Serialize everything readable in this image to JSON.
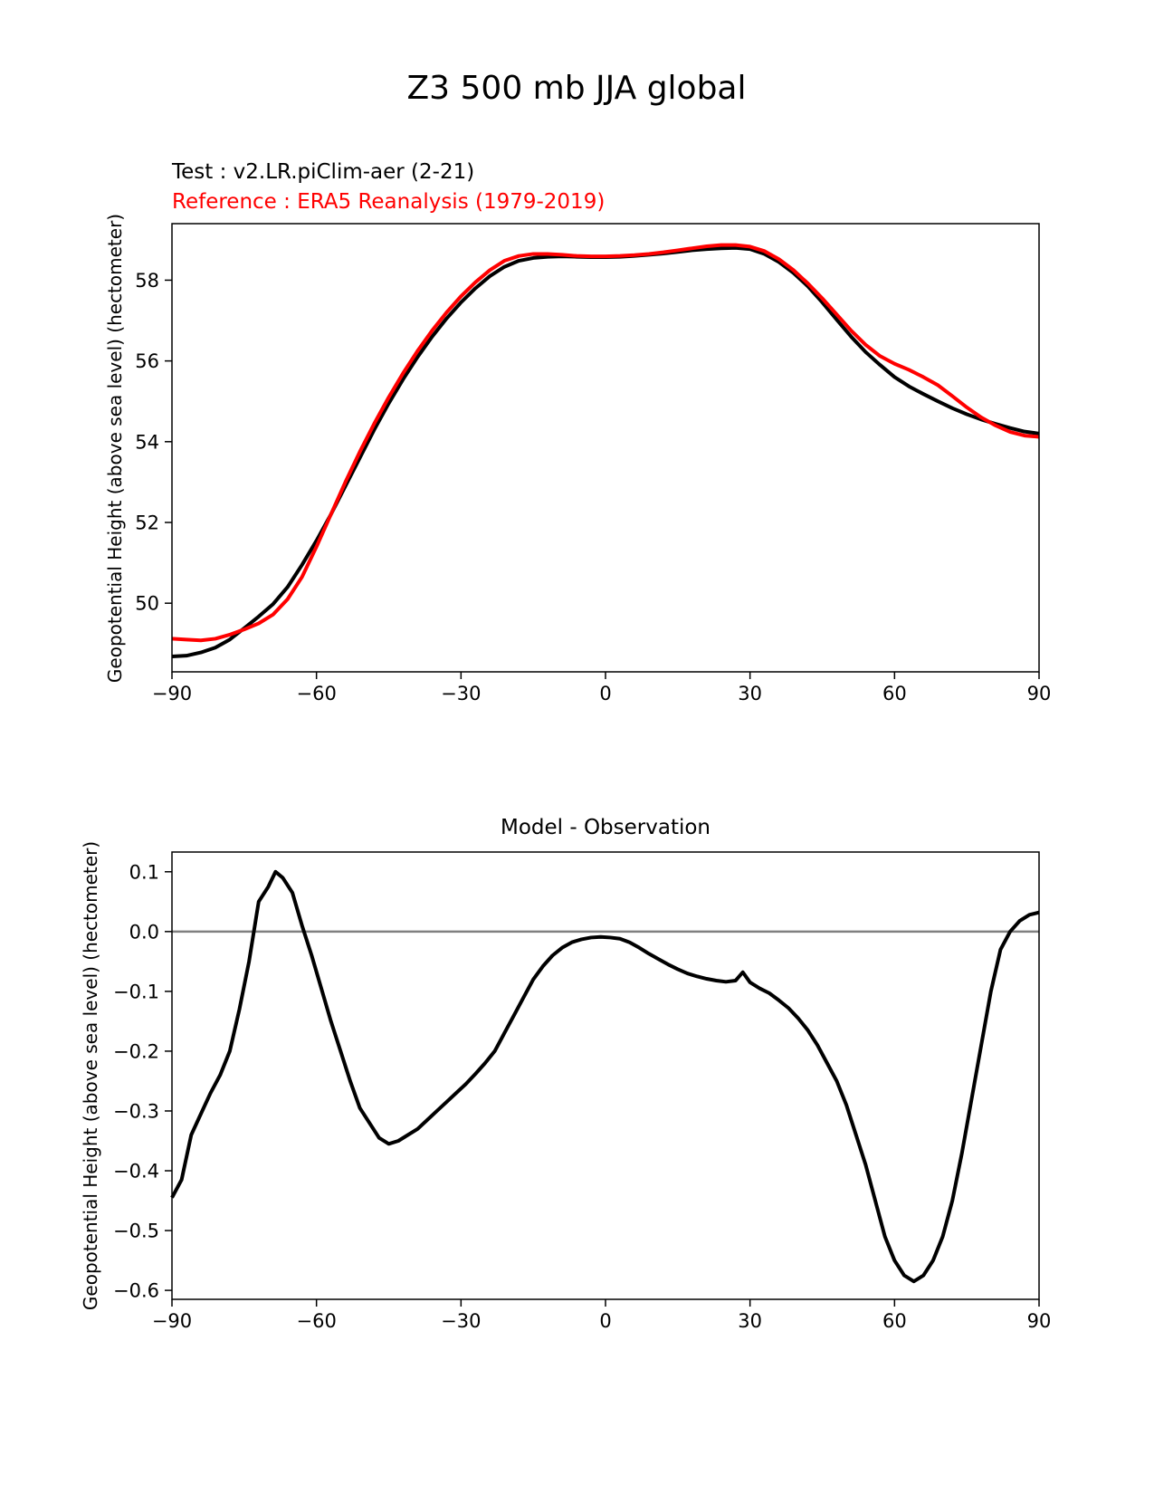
{
  "figure": {
    "title": "Z3 500 mb JJA global"
  },
  "chart_data": [
    {
      "type": "line",
      "test_label": "Test : v2.LR.piClim-aer (2-21)",
      "reference_label": "Reference : ERA5 Reanalysis (1979-2019)",
      "ylabel": "Geopotential Height (above sea level) (hectometer)",
      "xlabel": "",
      "xlim": [
        -90,
        90
      ],
      "ylim": [
        48.3,
        59.4
      ],
      "xticks": [
        -90,
        -60,
        -30,
        0,
        30,
        60,
        90
      ],
      "xtick_labels": [
        "−90",
        "−60",
        "−30",
        "0",
        "30",
        "60",
        "90"
      ],
      "yticks": [
        50,
        52,
        54,
        56,
        58
      ],
      "ytick_labels": [
        "50",
        "52",
        "54",
        "56",
        "58"
      ],
      "grid": false,
      "series": [
        {
          "name": "Test : v2.LR.piClim-aer (2-21)",
          "color": "#000000",
          "x": [
            -90,
            -87,
            -84,
            -81,
            -78,
            -75,
            -72,
            -69,
            -66,
            -63,
            -60,
            -57,
            -54,
            -51,
            -48,
            -45,
            -42,
            -39,
            -36,
            -33,
            -30,
            -27,
            -24,
            -21,
            -18,
            -15,
            -12,
            -9,
            -6,
            -3,
            0,
            3,
            6,
            9,
            12,
            15,
            18,
            21,
            24,
            27,
            30,
            33,
            36,
            39,
            42,
            45,
            48,
            51,
            54,
            57,
            60,
            63,
            66,
            69,
            72,
            75,
            78,
            81,
            84,
            87,
            90
          ],
          "y": [
            48.68,
            48.7,
            48.78,
            48.9,
            49.1,
            49.38,
            49.67,
            49.98,
            50.4,
            50.95,
            51.55,
            52.2,
            52.9,
            53.6,
            54.3,
            54.95,
            55.55,
            56.1,
            56.6,
            57.05,
            57.45,
            57.8,
            58.1,
            58.33,
            58.48,
            58.55,
            58.58,
            58.59,
            58.58,
            58.57,
            58.57,
            58.58,
            58.6,
            58.63,
            58.66,
            58.7,
            58.74,
            58.77,
            58.79,
            58.8,
            58.77,
            58.65,
            58.45,
            58.18,
            57.85,
            57.45,
            57.02,
            56.6,
            56.22,
            55.9,
            55.6,
            55.37,
            55.18,
            55.0,
            54.83,
            54.68,
            54.55,
            54.44,
            54.34,
            54.25,
            54.2
          ]
        },
        {
          "name": "Reference : ERA5 Reanalysis (1979-2019)",
          "color": "#ff0000",
          "x": [
            -90,
            -87,
            -84,
            -81,
            -78,
            -75,
            -72,
            -69,
            -66,
            -63,
            -60,
            -57,
            -54,
            -51,
            -48,
            -45,
            -42,
            -39,
            -36,
            -33,
            -30,
            -27,
            -24,
            -21,
            -18,
            -15,
            -12,
            -9,
            -6,
            -3,
            0,
            3,
            6,
            9,
            12,
            15,
            18,
            21,
            24,
            27,
            30,
            33,
            36,
            39,
            42,
            45,
            48,
            51,
            54,
            57,
            60,
            63,
            66,
            69,
            72,
            75,
            78,
            81,
            84,
            87,
            90
          ],
          "y": [
            49.12,
            49.1,
            49.08,
            49.12,
            49.22,
            49.35,
            49.5,
            49.72,
            50.1,
            50.65,
            51.4,
            52.2,
            53.0,
            53.75,
            54.45,
            55.1,
            55.7,
            56.25,
            56.75,
            57.2,
            57.6,
            57.95,
            58.25,
            58.48,
            58.6,
            58.65,
            58.65,
            58.63,
            58.6,
            58.59,
            58.59,
            58.6,
            58.62,
            58.65,
            58.69,
            58.74,
            58.79,
            58.84,
            58.87,
            58.87,
            58.83,
            58.72,
            58.52,
            58.25,
            57.92,
            57.55,
            57.15,
            56.75,
            56.4,
            56.12,
            55.93,
            55.78,
            55.6,
            55.4,
            55.13,
            54.85,
            54.6,
            54.4,
            54.24,
            54.15,
            54.12
          ]
        }
      ]
    },
    {
      "type": "line",
      "title": "Model - Observation",
      "ylabel": "Geopotential Height (above sea level) (hectometer)",
      "xlabel": "",
      "xlim": [
        -90,
        90
      ],
      "ylim": [
        -0.615,
        0.133
      ],
      "xticks": [
        -90,
        -60,
        -30,
        0,
        30,
        60,
        90
      ],
      "xtick_labels": [
        "−90",
        "−60",
        "−30",
        "0",
        "30",
        "60",
        "90"
      ],
      "yticks": [
        0.1,
        0.0,
        -0.1,
        -0.2,
        -0.3,
        -0.4,
        -0.5,
        -0.6
      ],
      "ytick_labels": [
        "0.1",
        "0.0",
        "−0.1",
        "−0.2",
        "−0.3",
        "−0.4",
        "−0.5",
        "−0.6"
      ],
      "grid": false,
      "zero_line": {
        "y": 0,
        "color": "#808080"
      },
      "series": [
        {
          "color": "#000000",
          "x": [
            -90,
            -88,
            -86,
            -84,
            -82,
            -80,
            -78,
            -76,
            -74,
            -72,
            -70,
            -68.5,
            -67,
            -65,
            -63,
            -61,
            -59,
            -57,
            -55,
            -53,
            -51,
            -49,
            -47,
            -45,
            -43,
            -41,
            -39,
            -37,
            -35,
            -33,
            -31,
            -29,
            -27,
            -25,
            -23,
            -21,
            -19,
            -17,
            -15,
            -13,
            -11,
            -9,
            -7,
            -5,
            -3,
            -1,
            1,
            3,
            5,
            7,
            9,
            11,
            13,
            15,
            17,
            19,
            21,
            23,
            25,
            27,
            28.5,
            30,
            32,
            34,
            36,
            38,
            40,
            42,
            44,
            46,
            48,
            50,
            52,
            54,
            56,
            58,
            60,
            62,
            64,
            65,
            66,
            68,
            70,
            72,
            74,
            76,
            78,
            80,
            82,
            84,
            86,
            88,
            90
          ],
          "y": [
            -0.445,
            -0.415,
            -0.34,
            -0.305,
            -0.27,
            -0.24,
            -0.2,
            -0.13,
            -0.05,
            0.05,
            0.075,
            0.1,
            0.09,
            0.065,
            0.01,
            -0.04,
            -0.095,
            -0.15,
            -0.2,
            -0.25,
            -0.295,
            -0.32,
            -0.345,
            -0.355,
            -0.35,
            -0.34,
            -0.33,
            -0.315,
            -0.3,
            -0.285,
            -0.27,
            -0.255,
            -0.238,
            -0.22,
            -0.2,
            -0.17,
            -0.14,
            -0.11,
            -0.08,
            -0.058,
            -0.04,
            -0.027,
            -0.018,
            -0.013,
            -0.01,
            -0.009,
            -0.01,
            -0.012,
            -0.018,
            -0.027,
            -0.037,
            -0.046,
            -0.055,
            -0.063,
            -0.07,
            -0.075,
            -0.079,
            -0.082,
            -0.084,
            -0.082,
            -0.068,
            -0.085,
            -0.095,
            -0.103,
            -0.115,
            -0.128,
            -0.145,
            -0.165,
            -0.19,
            -0.22,
            -0.25,
            -0.29,
            -0.34,
            -0.39,
            -0.45,
            -0.51,
            -0.55,
            -0.575,
            -0.585,
            -0.58,
            -0.575,
            -0.55,
            -0.51,
            -0.45,
            -0.37,
            -0.28,
            -0.19,
            -0.1,
            -0.03,
            0.0,
            0.018,
            0.028,
            0.032
          ]
        }
      ]
    }
  ]
}
